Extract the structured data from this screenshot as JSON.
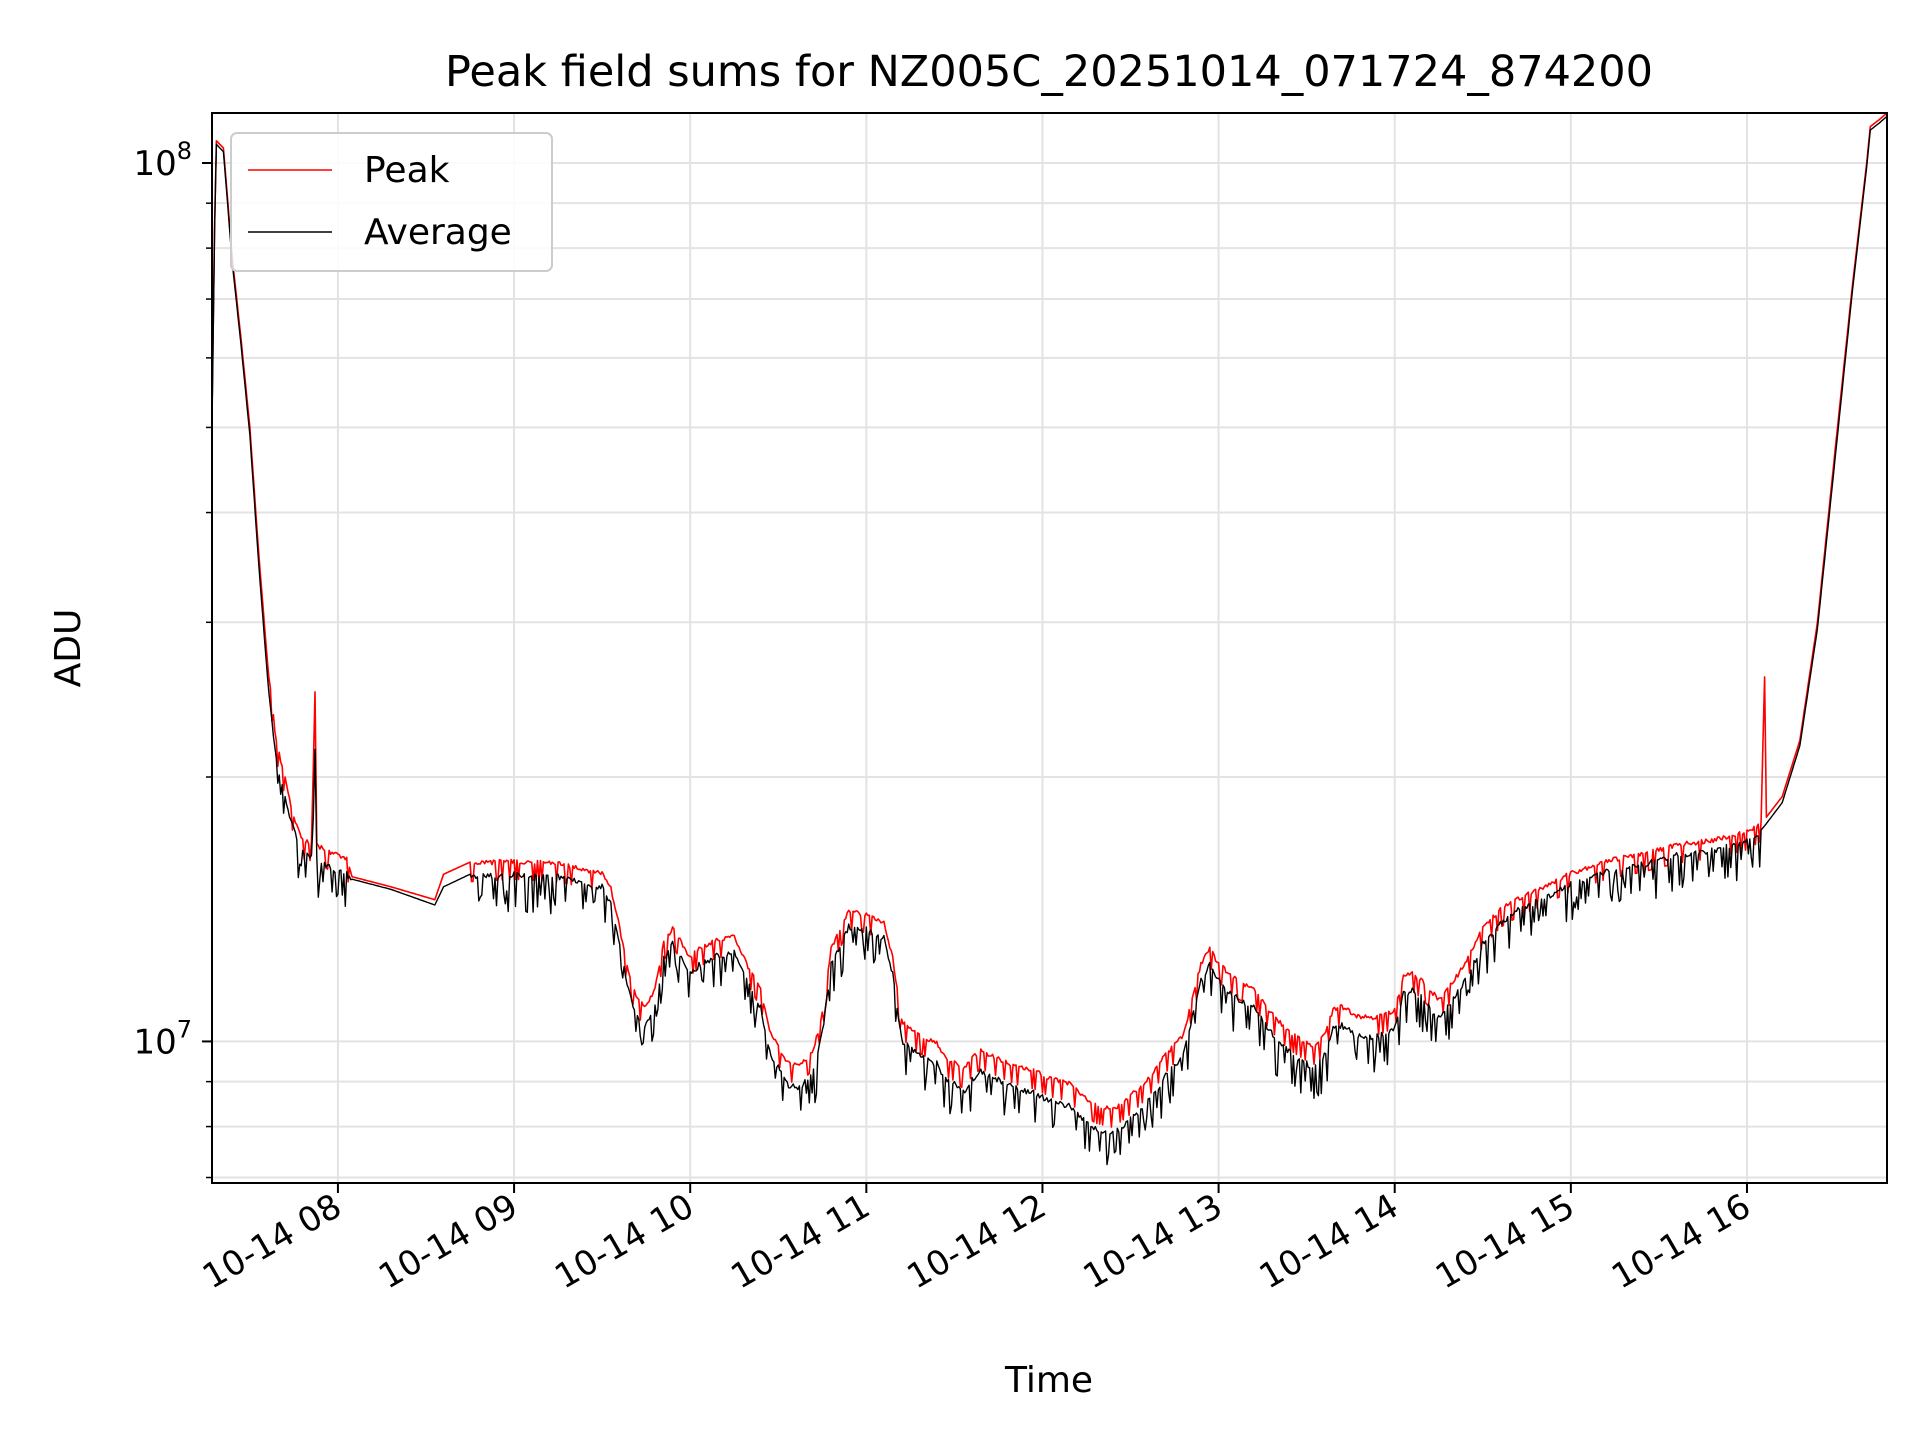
{
  "chart_data": {
    "type": "line",
    "title": "Peak field sums for NZ005C_20251014_071724_874200",
    "xlabel": "Time",
    "ylabel": "ADU",
    "yscale": "log",
    "xlim": [
      7.285,
      16.795
    ],
    "ylim": [
      6900000,
      114000000
    ],
    "grid": true,
    "legend_position": "upper-left",
    "x_ticks": [
      {
        "value": 8,
        "label": "10-14 08"
      },
      {
        "value": 9,
        "label": "10-14 09"
      },
      {
        "value": 10,
        "label": "10-14 10"
      },
      {
        "value": 11,
        "label": "10-14 11"
      },
      {
        "value": 12,
        "label": "10-14 12"
      },
      {
        "value": 13,
        "label": "10-14 13"
      },
      {
        "value": 14,
        "label": "10-14 14"
      },
      {
        "value": 15,
        "label": "10-14 15"
      },
      {
        "value": 16,
        "label": "10-14 16"
      }
    ],
    "y_ticks": [
      {
        "value": 10000000,
        "base": "10",
        "exp": "7"
      },
      {
        "value": 100000000,
        "base": "10",
        "exp": "8"
      }
    ],
    "series": [
      {
        "name": "Peak",
        "color": "#ff0000",
        "points": [
          [
            7.285,
            52000000
          ],
          [
            7.3,
            85000000
          ],
          [
            7.31,
            106000000
          ],
          [
            7.35,
            104000000
          ],
          [
            7.4,
            78000000
          ],
          [
            7.45,
            63000000
          ],
          [
            7.5,
            50000000
          ],
          [
            7.55,
            36000000
          ],
          [
            7.6,
            27000000
          ],
          [
            7.65,
            22000000
          ],
          [
            7.7,
            20000000
          ],
          [
            7.75,
            18000000
          ],
          [
            7.8,
            17000000
          ],
          [
            7.85,
            16900000
          ],
          [
            7.87,
            25000000
          ],
          [
            7.88,
            16800000
          ],
          [
            7.95,
            16500000
          ],
          [
            8.05,
            16200000
          ],
          [
            8.08,
            15400000
          ],
          [
            8.3,
            15000000
          ],
          [
            8.55,
            14500000
          ],
          [
            8.6,
            15500000
          ],
          [
            8.75,
            16000000
          ],
          [
            9.0,
            16100000
          ],
          [
            9.25,
            16000000
          ],
          [
            9.5,
            15600000
          ],
          [
            9.55,
            15000000
          ],
          [
            9.6,
            13500000
          ],
          [
            9.65,
            12000000
          ],
          [
            9.7,
            11200000
          ],
          [
            9.75,
            11000000
          ],
          [
            9.8,
            11500000
          ],
          [
            9.85,
            13000000
          ],
          [
            9.9,
            13500000
          ],
          [
            9.95,
            13000000
          ],
          [
            10.0,
            12500000
          ],
          [
            10.05,
            12800000
          ],
          [
            10.15,
            13100000
          ],
          [
            10.25,
            13200000
          ],
          [
            10.32,
            12300000
          ],
          [
            10.4,
            11500000
          ],
          [
            10.45,
            10300000
          ],
          [
            10.5,
            9900000
          ],
          [
            10.55,
            9500000
          ],
          [
            10.62,
            9400000
          ],
          [
            10.7,
            9800000
          ],
          [
            10.75,
            10800000
          ],
          [
            10.8,
            12800000
          ],
          [
            10.9,
            14100000
          ],
          [
            11.0,
            14000000
          ],
          [
            11.1,
            13700000
          ],
          [
            11.15,
            12500000
          ],
          [
            11.2,
            10600000
          ],
          [
            11.3,
            10200000
          ],
          [
            11.4,
            10000000
          ],
          [
            11.45,
            9600000
          ],
          [
            11.5,
            9500000
          ],
          [
            11.55,
            9300000
          ],
          [
            11.6,
            9600000
          ],
          [
            11.65,
            9800000
          ],
          [
            11.75,
            9600000
          ],
          [
            11.85,
            9400000
          ],
          [
            11.95,
            9300000
          ],
          [
            12.05,
            9100000
          ],
          [
            12.15,
            9000000
          ],
          [
            12.2,
            8800000
          ],
          [
            12.3,
            8500000
          ],
          [
            12.4,
            8400000
          ],
          [
            12.5,
            8700000
          ],
          [
            12.6,
            9100000
          ],
          [
            12.7,
            9700000
          ],
          [
            12.8,
            10200000
          ],
          [
            12.85,
            11200000
          ],
          [
            12.9,
            12300000
          ],
          [
            12.95,
            12800000
          ],
          [
            13.0,
            12300000
          ],
          [
            13.1,
            11800000
          ],
          [
            13.2,
            11500000
          ],
          [
            13.3,
            10800000
          ],
          [
            13.4,
            10300000
          ],
          [
            13.5,
            10000000
          ],
          [
            13.55,
            9900000
          ],
          [
            13.6,
            10200000
          ],
          [
            13.65,
            10900000
          ],
          [
            13.7,
            11000000
          ],
          [
            13.8,
            10700000
          ],
          [
            13.9,
            10700000
          ],
          [
            14.0,
            10900000
          ],
          [
            14.05,
            11900000
          ],
          [
            14.1,
            12000000
          ],
          [
            14.15,
            11800000
          ],
          [
            14.25,
            11200000
          ],
          [
            14.3,
            11500000
          ],
          [
            14.4,
            12300000
          ],
          [
            14.5,
            13500000
          ],
          [
            14.6,
            14200000
          ],
          [
            14.7,
            14600000
          ],
          [
            14.8,
            14900000
          ],
          [
            15.0,
            15600000
          ],
          [
            15.2,
            16100000
          ],
          [
            15.4,
            16400000
          ],
          [
            15.6,
            16800000
          ],
          [
            15.8,
            17000000
          ],
          [
            16.0,
            17400000
          ],
          [
            16.08,
            17800000
          ],
          [
            16.1,
            26000000
          ],
          [
            16.11,
            18000000
          ],
          [
            16.2,
            19000000
          ],
          [
            16.3,
            22000000
          ],
          [
            16.4,
            30000000
          ],
          [
            16.5,
            47000000
          ],
          [
            16.6,
            73000000
          ],
          [
            16.68,
            100000000
          ],
          [
            16.7,
            110000000
          ],
          [
            16.75,
            112000000
          ],
          [
            16.795,
            114000000
          ]
        ]
      },
      {
        "name": "Average",
        "color": "#000000",
        "points": [
          [
            7.285,
            50000000
          ],
          [
            7.3,
            84000000
          ],
          [
            7.31,
            105000000
          ],
          [
            7.35,
            103000000
          ],
          [
            7.4,
            77000000
          ],
          [
            7.45,
            62000000
          ],
          [
            7.5,
            49000000
          ],
          [
            7.55,
            35000000
          ],
          [
            7.6,
            26000000
          ],
          [
            7.65,
            21000000
          ],
          [
            7.7,
            19000000
          ],
          [
            7.75,
            17500000
          ],
          [
            7.8,
            16500000
          ],
          [
            7.85,
            16300000
          ],
          [
            7.87,
            21500000
          ],
          [
            7.88,
            16200000
          ],
          [
            7.95,
            15900000
          ],
          [
            8.05,
            15600000
          ],
          [
            8.08,
            15300000
          ],
          [
            8.3,
            14900000
          ],
          [
            8.55,
            14300000
          ],
          [
            8.6,
            15000000
          ],
          [
            8.75,
            15500000
          ],
          [
            9.0,
            15600000
          ],
          [
            9.25,
            15500000
          ],
          [
            9.5,
            15100000
          ],
          [
            9.55,
            14400000
          ],
          [
            9.6,
            12900000
          ],
          [
            9.65,
            11500000
          ],
          [
            9.7,
            10700000
          ],
          [
            9.75,
            10500000
          ],
          [
            9.8,
            11000000
          ],
          [
            9.85,
            12500000
          ],
          [
            9.9,
            13000000
          ],
          [
            9.95,
            12500000
          ],
          [
            10.0,
            12000000
          ],
          [
            10.05,
            12300000
          ],
          [
            10.15,
            12600000
          ],
          [
            10.25,
            12700000
          ],
          [
            10.32,
            11800000
          ],
          [
            10.4,
            11000000
          ],
          [
            10.45,
            9800000
          ],
          [
            10.5,
            9400000
          ],
          [
            10.55,
            9000000
          ],
          [
            10.62,
            8900000
          ],
          [
            10.7,
            9300000
          ],
          [
            10.75,
            10300000
          ],
          [
            10.8,
            12300000
          ],
          [
            10.9,
            13600000
          ],
          [
            11.0,
            13500000
          ],
          [
            11.1,
            13200000
          ],
          [
            11.15,
            12000000
          ],
          [
            11.2,
            10100000
          ],
          [
            11.3,
            9700000
          ],
          [
            11.4,
            9500000
          ],
          [
            11.45,
            9100000
          ],
          [
            11.5,
            9000000
          ],
          [
            11.55,
            8800000
          ],
          [
            11.6,
            9100000
          ],
          [
            11.65,
            9300000
          ],
          [
            11.75,
            9100000
          ],
          [
            11.85,
            8900000
          ],
          [
            11.95,
            8800000
          ],
          [
            12.05,
            8600000
          ],
          [
            12.15,
            8500000
          ],
          [
            12.2,
            8300000
          ],
          [
            12.3,
            8000000
          ],
          [
            12.4,
            7900000
          ],
          [
            12.5,
            8200000
          ],
          [
            12.6,
            8600000
          ],
          [
            12.7,
            9200000
          ],
          [
            12.8,
            9700000
          ],
          [
            12.85,
            10700000
          ],
          [
            12.9,
            11800000
          ],
          [
            12.95,
            12300000
          ],
          [
            13.0,
            11800000
          ],
          [
            13.1,
            11300000
          ],
          [
            13.2,
            11000000
          ],
          [
            13.3,
            10300000
          ],
          [
            13.4,
            9800000
          ],
          [
            13.5,
            9500000
          ],
          [
            13.55,
            9400000
          ],
          [
            13.6,
            9700000
          ],
          [
            13.65,
            10400000
          ],
          [
            13.7,
            10500000
          ],
          [
            13.8,
            10200000
          ],
          [
            13.9,
            10200000
          ],
          [
            14.0,
            10400000
          ],
          [
            14.05,
            11400000
          ],
          [
            14.1,
            11500000
          ],
          [
            14.15,
            11300000
          ],
          [
            14.25,
            10700000
          ],
          [
            14.3,
            11000000
          ],
          [
            14.4,
            11800000
          ],
          [
            14.5,
            13000000
          ],
          [
            14.6,
            13700000
          ],
          [
            14.7,
            14200000
          ],
          [
            14.8,
            14500000
          ],
          [
            15.0,
            15200000
          ],
          [
            15.2,
            15700000
          ],
          [
            15.4,
            16000000
          ],
          [
            15.6,
            16400000
          ],
          [
            15.8,
            16600000
          ],
          [
            16.0,
            17000000
          ],
          [
            16.08,
            17400000
          ],
          [
            16.1,
            17600000
          ],
          [
            16.11,
            17700000
          ],
          [
            16.2,
            18700000
          ],
          [
            16.3,
            21700000
          ],
          [
            16.4,
            29500000
          ],
          [
            16.5,
            46000000
          ],
          [
            16.6,
            72000000
          ],
          [
            16.68,
            99000000
          ],
          [
            16.7,
            109000000
          ],
          [
            16.75,
            111000000
          ],
          [
            16.795,
            113000000
          ]
        ]
      }
    ]
  }
}
